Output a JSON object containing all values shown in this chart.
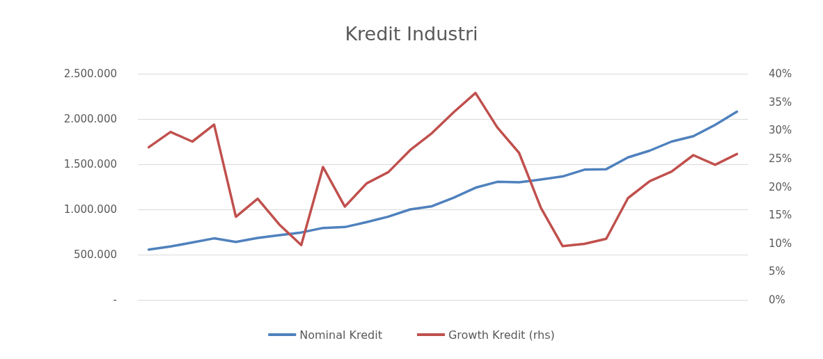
{
  "chart_data": {
    "type": "line",
    "title": "Kredit Industri",
    "categories": [
      null,
      null,
      null,
      null,
      null,
      null,
      null,
      null,
      null,
      null,
      null,
      null,
      null,
      null,
      null,
      null,
      null,
      null,
      null,
      null,
      null,
      null,
      null,
      null,
      null,
      null,
      null,
      null
    ],
    "series": [
      {
        "name": "Nominal Kredit",
        "color": "#4f81bd",
        "values": [
          555000,
          590000,
          635000,
          680000,
          640000,
          685000,
          715000,
          745000,
          795000,
          805000,
          860000,
          920000,
          1000000,
          1035000,
          1130000,
          1240000,
          1305000,
          1300000,
          1330000,
          1365000,
          1440000,
          1445000,
          1575000,
          1650000,
          1750000,
          1810000,
          1935000,
          2080000
        ]
      },
      {
        "name": "Growth Kredit (rhs)",
        "color": "#c0504d",
        "axis": "y2",
        "values": [
          27,
          29.7,
          28,
          31,
          14.7,
          17.9,
          13.3,
          9.7,
          23.5,
          16.5,
          20.6,
          22.6,
          26.5,
          29.5,
          33.2,
          36.6,
          30.5,
          26,
          16.3,
          9.5,
          9.9,
          10.8,
          18,
          21,
          22.7,
          25.6,
          23.9,
          25.8
        ]
      }
    ],
    "ylim": [
      0,
      2500000
    ],
    "yticks": [
      {
        "value": 0,
        "label": "-"
      },
      {
        "value": 500000,
        "label": "500.000"
      },
      {
        "value": 1000000,
        "label": "1.000.000"
      },
      {
        "value": 1500000,
        "label": "1.500.000"
      },
      {
        "value": 2000000,
        "label": "2.000.000"
      },
      {
        "value": 2500000,
        "label": "2.500.000"
      }
    ],
    "y2lim": [
      0,
      40
    ],
    "y2ticks": [
      {
        "value": 0,
        "label": "0%"
      },
      {
        "value": 5,
        "label": "5%"
      },
      {
        "value": 10,
        "label": "10%"
      },
      {
        "value": 15,
        "label": "15%"
      },
      {
        "value": 20,
        "label": "20%"
      },
      {
        "value": 25,
        "label": "25%"
      },
      {
        "value": 30,
        "label": "30%"
      },
      {
        "value": 35,
        "label": "35%"
      },
      {
        "value": 40,
        "label": "40%"
      }
    ],
    "grid": "y",
    "legend": "bottom",
    "marker": "none",
    "line_style": "solid"
  }
}
